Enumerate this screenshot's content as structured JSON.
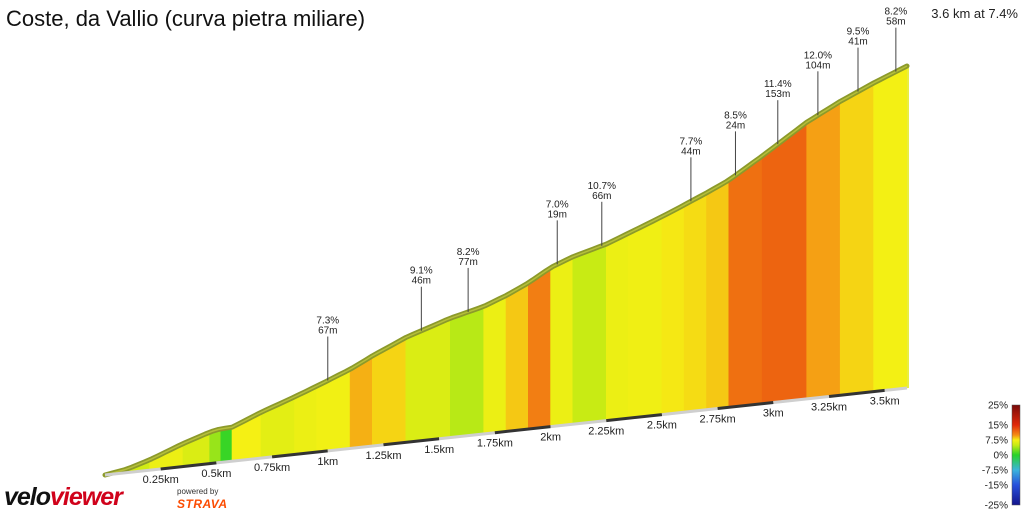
{
  "title": "Coste, da Vallio (curva pietra miliare)",
  "summary": "3.6 km at 7.4%",
  "branding": {
    "logo_part1": "velo",
    "logo_part2": "viewer",
    "powered_by": "powered by",
    "strava": "STRAVA"
  },
  "chart_data": {
    "type": "area",
    "title": "Coste, da Vallio (curva pietra miliare)",
    "subtitle": "3.6 km at 7.4%",
    "x_unit": "km",
    "xlim": [
      0,
      3.6
    ],
    "x_ticks": [
      {
        "value": 0.25,
        "label": "0.25km"
      },
      {
        "value": 0.5,
        "label": "0.5km"
      },
      {
        "value": 0.75,
        "label": "0.75km"
      },
      {
        "value": 1.0,
        "label": "1km"
      },
      {
        "value": 1.25,
        "label": "1.25km"
      },
      {
        "value": 1.5,
        "label": "1.5km"
      },
      {
        "value": 1.75,
        "label": "1.75km"
      },
      {
        "value": 2.0,
        "label": "2km"
      },
      {
        "value": 2.25,
        "label": "2.25km"
      },
      {
        "value": 2.5,
        "label": "2.5km"
      },
      {
        "value": 2.75,
        "label": "2.75km"
      },
      {
        "value": 3.0,
        "label": "3km"
      },
      {
        "value": 3.25,
        "label": "3.25km"
      },
      {
        "value": 3.5,
        "label": "3.5km"
      }
    ],
    "segments": [
      {
        "x0": 0.0,
        "x1": 0.1,
        "gradient": 3.0
      },
      {
        "x0": 0.1,
        "x1": 0.2,
        "gradient": 5.5
      },
      {
        "x0": 0.2,
        "x1": 0.35,
        "gradient": 7.0
      },
      {
        "x0": 0.35,
        "x1": 0.47,
        "gradient": 6.0
      },
      {
        "x0": 0.47,
        "x1": 0.52,
        "gradient": 3.5
      },
      {
        "x0": 0.52,
        "x1": 0.57,
        "gradient": 0.5
      },
      {
        "x0": 0.57,
        "x1": 0.7,
        "gradient": 7.5
      },
      {
        "x0": 0.7,
        "x1": 0.85,
        "gradient": 6.5
      },
      {
        "x0": 0.85,
        "x1": 0.95,
        "gradient": 7.0
      },
      {
        "x0": 0.95,
        "x1": 1.1,
        "gradient": 7.3
      },
      {
        "x0": 1.1,
        "x1": 1.2,
        "gradient": 9.1
      },
      {
        "x0": 1.2,
        "x1": 1.35,
        "gradient": 8.2
      },
      {
        "x0": 1.35,
        "x1": 1.55,
        "gradient": 6.0
      },
      {
        "x0": 1.55,
        "x1": 1.7,
        "gradient": 4.5
      },
      {
        "x0": 1.7,
        "x1": 1.8,
        "gradient": 7.0
      },
      {
        "x0": 1.8,
        "x1": 1.9,
        "gradient": 8.5
      },
      {
        "x0": 1.9,
        "x1": 2.0,
        "gradient": 10.7
      },
      {
        "x0": 2.0,
        "x1": 2.1,
        "gradient": 7.0
      },
      {
        "x0": 2.1,
        "x1": 2.25,
        "gradient": 5.0
      },
      {
        "x0": 2.25,
        "x1": 2.35,
        "gradient": 7.0
      },
      {
        "x0": 2.35,
        "x1": 2.5,
        "gradient": 7.2
      },
      {
        "x0": 2.5,
        "x1": 2.6,
        "gradient": 7.7
      },
      {
        "x0": 2.6,
        "x1": 2.7,
        "gradient": 8.0
      },
      {
        "x0": 2.7,
        "x1": 2.8,
        "gradient": 8.5
      },
      {
        "x0": 2.8,
        "x1": 2.95,
        "gradient": 11.4
      },
      {
        "x0": 2.95,
        "x1": 3.15,
        "gradient": 12.0
      },
      {
        "x0": 3.15,
        "x1": 3.3,
        "gradient": 9.5
      },
      {
        "x0": 3.3,
        "x1": 3.45,
        "gradient": 8.2
      },
      {
        "x0": 3.45,
        "x1": 3.6,
        "gradient": 7.4
      }
    ],
    "annotations": [
      {
        "x": 1.0,
        "gradient": "7.3%",
        "length": "67m"
      },
      {
        "x": 1.42,
        "gradient": "9.1%",
        "length": "46m"
      },
      {
        "x": 1.63,
        "gradient": "8.2%",
        "length": "77m"
      },
      {
        "x": 2.03,
        "gradient": "7.0%",
        "length": "19m"
      },
      {
        "x": 2.23,
        "gradient": "10.7%",
        "length": "66m"
      },
      {
        "x": 2.63,
        "gradient": "7.7%",
        "length": "44m"
      },
      {
        "x": 2.83,
        "gradient": "8.5%",
        "length": "24m"
      },
      {
        "x": 3.02,
        "gradient": "11.4%",
        "length": "153m"
      },
      {
        "x": 3.2,
        "gradient": "12.0%",
        "length": "104m"
      },
      {
        "x": 3.38,
        "gradient": "9.5%",
        "length": "41m"
      },
      {
        "x": 3.55,
        "gradient": "8.2%",
        "length": "58m"
      }
    ],
    "legend": {
      "placement": "bottom-right",
      "labels": [
        "25%",
        "15%",
        "7.5%",
        "0%",
        "-7.5%",
        "-15%",
        "-25%"
      ]
    }
  },
  "colors": {
    "outline": "#8c9a2a",
    "outline_dark": "#6e4a18",
    "axis": "#333333"
  }
}
